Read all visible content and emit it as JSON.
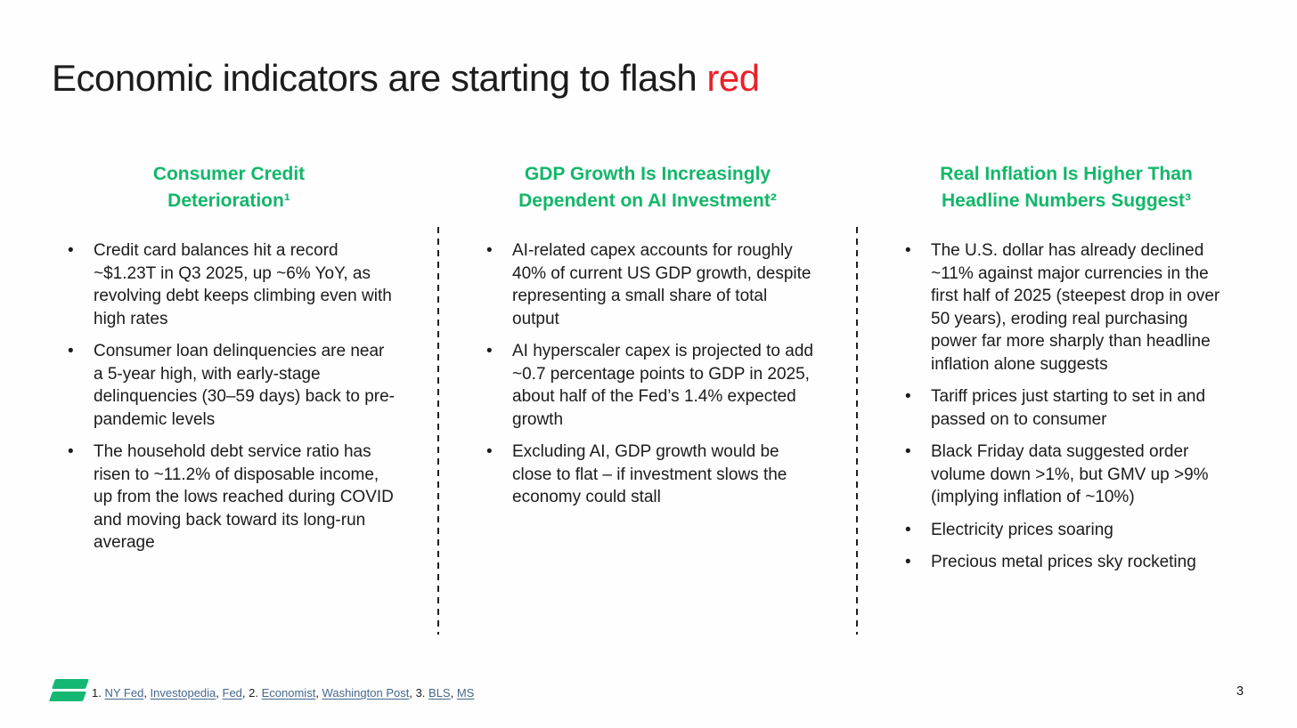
{
  "slide": {
    "title": {
      "main": "Economic indicators are starting to flash ",
      "highlight": "red"
    },
    "page_number": "3"
  },
  "colors": {
    "accent_green": "#12b76a",
    "highlight_red": "#ec2027",
    "link_blue": "#44678d",
    "body_text": "#1b1b1b"
  },
  "columns": [
    {
      "heading_lines": [
        "Consumer Credit",
        "Deterioration¹"
      ],
      "bullets": [
        "Credit card balances hit a record ~$1.23T in Q3 2025, up ~6% YoY, as revolving debt keeps climbing even with high rates",
        "Consumer loan delinquencies are near a 5-year high, with early-stage delinquencies (30–59 days) back to pre-pandemic levels",
        "The household debt service ratio has risen to ~11.2% of disposable income, up from the lows reached during COVID and moving back toward its long-run average"
      ]
    },
    {
      "heading_lines": [
        "GDP Growth Is Increasingly",
        "Dependent on AI Investment²"
      ],
      "bullets": [
        "AI-related capex accounts for roughly 40% of current US GDP growth, despite representing a small share of total output",
        "AI hyperscaler capex is projected to add ~0.7 percentage points to GDP in 2025, about half of the Fed’s 1.4% expected growth",
        "Excluding AI, GDP growth would be close to flat – if investment slows the economy could stall"
      ]
    },
    {
      "heading_lines": [
        "Real Inflation Is Higher Than",
        "Headline Numbers Suggest³"
      ],
      "bullets": [
        "The U.S. dollar has already declined ~11% against major currencies in the first half of 2025 (steepest drop in over 50 years), eroding real purchasing power far more sharply than headline inflation alone suggests",
        "Tariff prices just starting to set in and passed on to consumer",
        "Black Friday data suggested order volume down >1%, but GMV up >9% (implying inflation of ~10%)",
        "Electricity prices soaring",
        "Precious metal prices sky rocketing"
      ]
    }
  ],
  "footer": {
    "logo_name": "green-equals-logo",
    "note_parts": [
      {
        "type": "text",
        "text": "1. "
      },
      {
        "type": "link",
        "text": "NY Fed"
      },
      {
        "type": "text",
        "text": ", "
      },
      {
        "type": "link",
        "text": "Investopedia"
      },
      {
        "type": "text",
        "text": ", "
      },
      {
        "type": "link",
        "text": "Fed"
      },
      {
        "type": "text",
        "text": ", 2. "
      },
      {
        "type": "link",
        "text": "Economist"
      },
      {
        "type": "text",
        "text": ", "
      },
      {
        "type": "link",
        "text": "Washington Post"
      },
      {
        "type": "text",
        "text": ", 3. "
      },
      {
        "type": "link",
        "text": "BLS"
      },
      {
        "type": "text",
        "text": ", "
      },
      {
        "type": "link",
        "text": "MS"
      }
    ]
  }
}
